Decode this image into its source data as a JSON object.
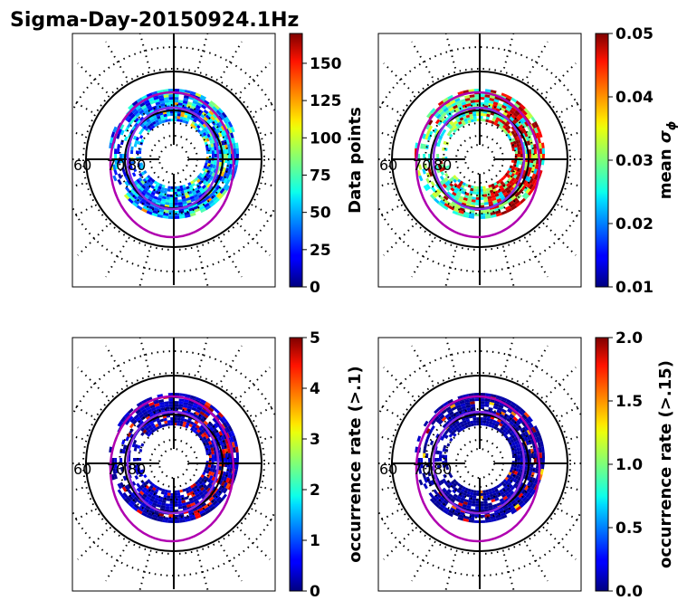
{
  "chart_data": {
    "title": "Sigma-Day-20150924.1Hz",
    "type": "heatmap",
    "projection": "polar (magnetic latitude / local time dial)",
    "grid": true,
    "panels": [
      {
        "name": "data-points",
        "colorbar_label": "Data points",
        "colormap": "jet",
        "range": [
          0,
          170
        ],
        "ticks": [
          "0",
          "25",
          "50",
          "75",
          "100",
          "125",
          "150"
        ],
        "tick_values": [
          0,
          25,
          50,
          75,
          100,
          125,
          150
        ],
        "lat_labels": [
          "60",
          "70",
          "80"
        ]
      },
      {
        "name": "mean-sigma-phi",
        "colorbar_label": "mean σϕ",
        "colorbar_label_main": "mean ",
        "colorbar_label_symbol": "σ",
        "colorbar_label_sub": "ϕ",
        "colormap": "jet",
        "range": [
          0.01,
          0.05
        ],
        "ticks": [
          "0.01",
          "0.02",
          "0.03",
          "0.04",
          "0.05"
        ],
        "tick_values": [
          0.01,
          0.02,
          0.03,
          0.04,
          0.05
        ],
        "lat_labels": [
          "60",
          "70",
          "80"
        ]
      },
      {
        "name": "occurrence-rate-01",
        "colorbar_label": "occurrence rate (>.1)",
        "colormap": "jet",
        "range": [
          0,
          5
        ],
        "ticks": [
          "0",
          "1",
          "2",
          "3",
          "4",
          "5"
        ],
        "tick_values": [
          0,
          1,
          2,
          3,
          4,
          5
        ],
        "lat_labels": [
          "60",
          "70",
          "80"
        ]
      },
      {
        "name": "occurrence-rate-015",
        "colorbar_label": "occurrence rate (>.15)",
        "colormap": "jet",
        "range": [
          0,
          2
        ],
        "ticks": [
          "0.0",
          "0.5",
          "1.0",
          "1.5",
          "2.0"
        ],
        "tick_values": [
          0,
          0.5,
          1.0,
          1.5,
          2.0
        ],
        "lat_labels": [
          "60",
          "70",
          "80"
        ]
      }
    ]
  },
  "colors": {
    "grid": "#000000",
    "oval": "#b000b0",
    "oval_inner": "#8a2be2"
  }
}
